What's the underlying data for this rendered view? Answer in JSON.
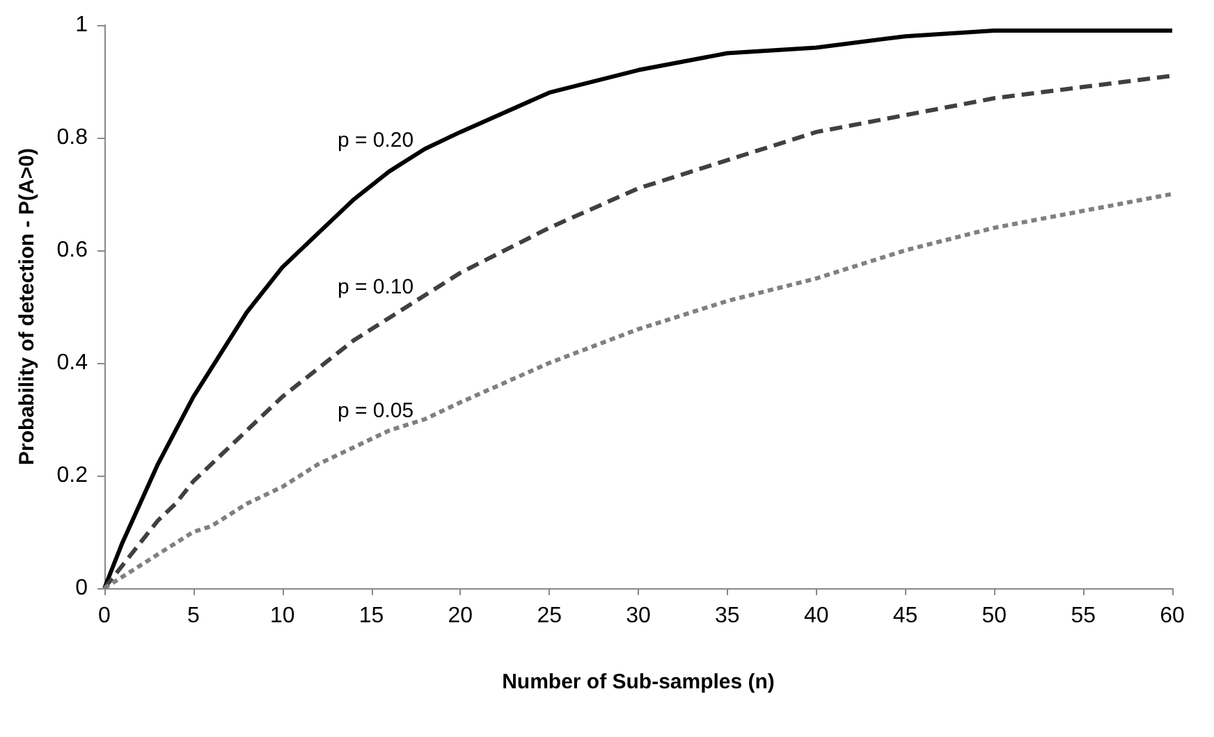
{
  "chart_data": {
    "type": "line",
    "xlabel": "Number of Sub-samples (n)",
    "ylabel": "Probability of detection - P(A>0)",
    "x": [
      0,
      1,
      2,
      3,
      4,
      5,
      6,
      8,
      10,
      12,
      14,
      16,
      18,
      20,
      25,
      30,
      35,
      40,
      45,
      50,
      55,
      60
    ],
    "series": [
      {
        "name": "p = 0.20",
        "color": "#000000",
        "line_style": "solid",
        "values": [
          0,
          0.08,
          0.15,
          0.22,
          0.28,
          0.34,
          0.39,
          0.49,
          0.57,
          0.63,
          0.69,
          0.74,
          0.78,
          0.81,
          0.88,
          0.92,
          0.95,
          0.96,
          0.98,
          0.99,
          0.99,
          0.99
        ]
      },
      {
        "name": "p = 0.10",
        "color": "#404040",
        "line_style": "dashed",
        "values": [
          0,
          0.04,
          0.08,
          0.12,
          0.15,
          0.19,
          0.22,
          0.28,
          0.34,
          0.39,
          0.44,
          0.48,
          0.52,
          0.56,
          0.64,
          0.71,
          0.76,
          0.81,
          0.84,
          0.87,
          0.89,
          0.91
        ]
      },
      {
        "name": "p = 0.05",
        "color": "#808080",
        "line_style": "dotted",
        "values": [
          0,
          0.02,
          0.04,
          0.06,
          0.08,
          0.1,
          0.11,
          0.15,
          0.18,
          0.22,
          0.25,
          0.28,
          0.3,
          0.33,
          0.4,
          0.46,
          0.51,
          0.55,
          0.6,
          0.64,
          0.67,
          0.7
        ]
      }
    ],
    "xlim": [
      0,
      60
    ],
    "xticks": [
      0,
      5,
      10,
      15,
      20,
      25,
      30,
      35,
      40,
      45,
      50,
      55,
      60
    ],
    "ylim": [
      0,
      1
    ],
    "yticks": [
      0,
      0.2,
      0.4,
      0.6,
      0.8,
      1
    ],
    "grid": false,
    "marker": "none"
  }
}
